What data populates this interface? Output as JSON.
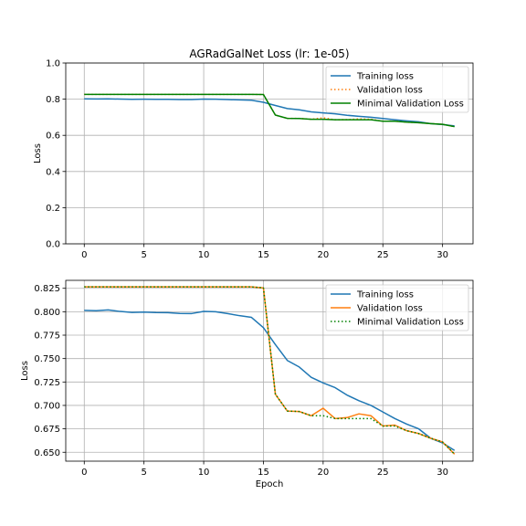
{
  "title": "AGRadGalNet Loss (lr: 1e-05)",
  "chart_data": [
    {
      "type": "line",
      "title": "AGRadGalNet Loss (lr: 1e-05)",
      "xlabel": "",
      "ylabel": "Loss",
      "xlim": [
        -1.55,
        32.55
      ],
      "ylim": [
        0,
        1.0
      ],
      "xticks": [
        0,
        5,
        10,
        15,
        20,
        25,
        30
      ],
      "xtick_labels": [
        "0",
        "5",
        "10",
        "15",
        "20",
        "25",
        "30"
      ],
      "yticks": [
        0,
        0.2,
        0.4,
        0.6,
        0.8,
        1.0
      ],
      "ytick_labels": [
        "0.0",
        "0.2",
        "0.4",
        "0.6",
        "0.8",
        "1.0"
      ],
      "grid": true,
      "legend_position": "top-right",
      "x": [
        0,
        1,
        2,
        3,
        4,
        5,
        6,
        7,
        8,
        9,
        10,
        11,
        12,
        13,
        14,
        15,
        16,
        17,
        18,
        19,
        20,
        21,
        22,
        23,
        24,
        25,
        26,
        27,
        28,
        29,
        30,
        31
      ],
      "series": [
        {
          "name": "Training loss",
          "color": "#1f77b4",
          "style": "solid",
          "values": [
            0.8015,
            0.8011,
            0.8019,
            0.8003,
            0.7993,
            0.7996,
            0.7991,
            0.799,
            0.7982,
            0.7981,
            0.8004,
            0.8,
            0.798,
            0.7958,
            0.794,
            0.783,
            0.765,
            0.748,
            0.741,
            0.73,
            0.724,
            0.719,
            0.711,
            0.705,
            0.7,
            0.693,
            0.686,
            0.68,
            0.675,
            0.665,
            0.66,
            0.652
          ]
        },
        {
          "name": "Validation loss",
          "color": "#ff7f0e",
          "style": "dotted",
          "values": [
            0.8265,
            0.8265,
            0.8265,
            0.8265,
            0.8265,
            0.8265,
            0.8265,
            0.8265,
            0.8265,
            0.8265,
            0.8265,
            0.8265,
            0.8265,
            0.8265,
            0.8265,
            0.8255,
            0.712,
            0.694,
            0.6935,
            0.689,
            0.697,
            0.686,
            0.687,
            0.691,
            0.689,
            0.678,
            0.679,
            0.673,
            0.67,
            0.665,
            0.661,
            0.648
          ]
        },
        {
          "name": "Minimal Validation Loss",
          "color": "#008000",
          "style": "solid",
          "values": [
            0.8265,
            0.8265,
            0.8265,
            0.8265,
            0.8265,
            0.8265,
            0.8265,
            0.8265,
            0.8265,
            0.8265,
            0.8265,
            0.8265,
            0.8265,
            0.8265,
            0.8265,
            0.8255,
            0.712,
            0.694,
            0.6935,
            0.689,
            0.689,
            0.686,
            0.686,
            0.686,
            0.686,
            0.678,
            0.678,
            0.673,
            0.67,
            0.665,
            0.661,
            0.648
          ]
        }
      ]
    },
    {
      "type": "line",
      "title": "",
      "xlabel": "Epoch",
      "ylabel": "Loss",
      "xlim": [
        -1.55,
        32.55
      ],
      "ylim": [
        0.6405,
        0.8335
      ],
      "xticks": [
        0,
        5,
        10,
        15,
        20,
        25,
        30
      ],
      "xtick_labels": [
        "0",
        "5",
        "10",
        "15",
        "20",
        "25",
        "30"
      ],
      "yticks": [
        0.65,
        0.675,
        0.7,
        0.725,
        0.75,
        0.775,
        0.8,
        0.825
      ],
      "ytick_labels": [
        "0.650",
        "0.675",
        "0.700",
        "0.725",
        "0.750",
        "0.775",
        "0.800",
        "0.825"
      ],
      "grid": true,
      "legend_position": "top-right",
      "x": [
        0,
        1,
        2,
        3,
        4,
        5,
        6,
        7,
        8,
        9,
        10,
        11,
        12,
        13,
        14,
        15,
        16,
        17,
        18,
        19,
        20,
        21,
        22,
        23,
        24,
        25,
        26,
        27,
        28,
        29,
        30,
        31
      ],
      "series": [
        {
          "name": "Training loss",
          "color": "#1f77b4",
          "style": "solid",
          "values": [
            0.8015,
            0.8011,
            0.8019,
            0.8003,
            0.7993,
            0.7996,
            0.7991,
            0.799,
            0.7982,
            0.7981,
            0.8004,
            0.8,
            0.798,
            0.7958,
            0.794,
            0.783,
            0.765,
            0.748,
            0.741,
            0.73,
            0.724,
            0.719,
            0.711,
            0.705,
            0.7,
            0.693,
            0.686,
            0.68,
            0.675,
            0.665,
            0.66,
            0.652
          ]
        },
        {
          "name": "Validation loss",
          "color": "#ff7f0e",
          "style": "solid",
          "values": [
            0.8265,
            0.8265,
            0.8265,
            0.8265,
            0.8265,
            0.8265,
            0.8265,
            0.8265,
            0.8265,
            0.8265,
            0.8265,
            0.8265,
            0.8265,
            0.8265,
            0.8265,
            0.8255,
            0.712,
            0.694,
            0.6935,
            0.689,
            0.697,
            0.686,
            0.687,
            0.691,
            0.689,
            0.678,
            0.679,
            0.673,
            0.67,
            0.665,
            0.661,
            0.648
          ]
        },
        {
          "name": "Minimal Validation Loss",
          "color": "#008000",
          "style": "dotted",
          "values": [
            0.8265,
            0.8265,
            0.8265,
            0.8265,
            0.8265,
            0.8265,
            0.8265,
            0.8265,
            0.8265,
            0.8265,
            0.8265,
            0.8265,
            0.8265,
            0.8265,
            0.8265,
            0.8255,
            0.712,
            0.694,
            0.6935,
            0.689,
            0.689,
            0.686,
            0.686,
            0.686,
            0.686,
            0.678,
            0.678,
            0.673,
            0.67,
            0.665,
            0.661,
            0.648
          ]
        }
      ]
    }
  ]
}
